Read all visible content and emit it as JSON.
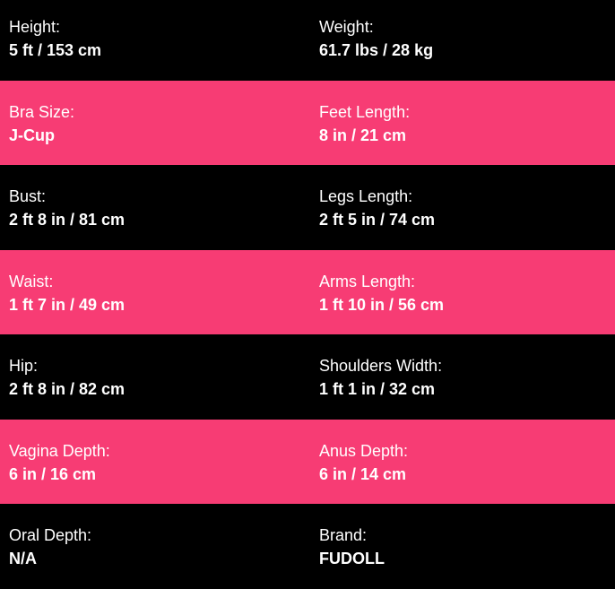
{
  "colors": {
    "dark_row": "#000000",
    "accent_row": "#f73c74"
  },
  "rows": [
    [
      {
        "label": "Height:",
        "value": "5 ft / 153 cm"
      },
      {
        "label": "Weight:",
        "value": "61.7 lbs / 28 kg"
      }
    ],
    [
      {
        "label": "Bra Size:",
        "value": "J-Cup"
      },
      {
        "label": "Feet Length:",
        "value": "8 in / 21 cm"
      }
    ],
    [
      {
        "label": "Bust:",
        "value": "2 ft 8 in / 81 cm"
      },
      {
        "label": "Legs Length:",
        "value": "2 ft 5 in / 74 cm"
      }
    ],
    [
      {
        "label": "Waist:",
        "value": "1 ft 7 in / 49 cm"
      },
      {
        "label": "Arms Length:",
        "value": "1 ft 10 in / 56 cm"
      }
    ],
    [
      {
        "label": "Hip:",
        "value": "2 ft 8 in / 82 cm"
      },
      {
        "label": "Shoulders Width:",
        "value": "1 ft 1 in / 32 cm"
      }
    ],
    [
      {
        "label": "Vagina Depth:",
        "value": "6 in / 16 cm"
      },
      {
        "label": "Anus Depth:",
        "value": "6 in / 14 cm"
      }
    ],
    [
      {
        "label": "Oral Depth:",
        "value": "N/A"
      },
      {
        "label": "Brand:",
        "value": "FUDOLL"
      }
    ]
  ]
}
